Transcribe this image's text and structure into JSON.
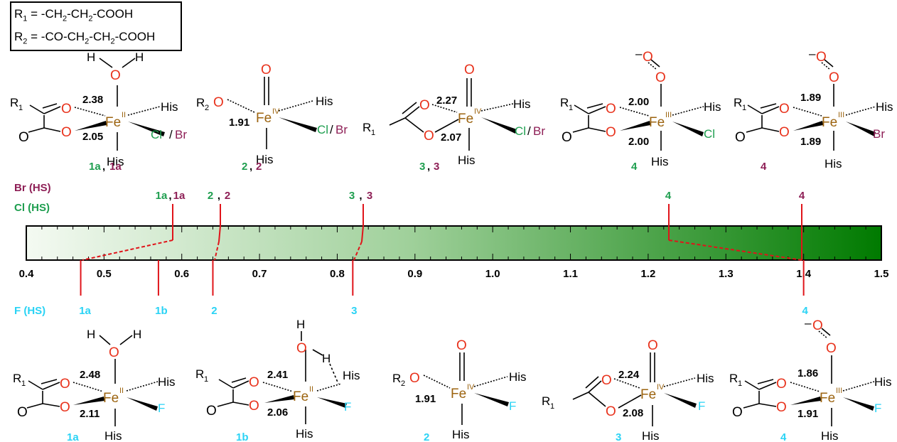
{
  "legend": {
    "r1": {
      "label": "R",
      "sub": "1",
      "def": " = -CH",
      "s1": "2",
      "mid": "-CH",
      "s2": "2",
      "end": "-COOH"
    },
    "r2": {
      "label": "R",
      "sub": "2",
      "def": " = -CO-CH",
      "s1": "2",
      "mid": "-CH",
      "s2": "2",
      "end": "-COOH"
    }
  },
  "colors": {
    "br": "#8e1f56",
    "cl": "#1e9e4f",
    "f": "#2ad3f5",
    "fe": "#9c6410",
    "o": "#e8321c",
    "marker": "#e0141a",
    "bar_start": "#f4faf2",
    "bar_end": "#007a00"
  },
  "series_labels": {
    "br": "Br (HS)",
    "cl": "Cl (HS)",
    "f": "F (HS)"
  },
  "chart_data": {
    "type": "diagram",
    "axis": {
      "min": 0.4,
      "max": 1.5,
      "ticks": [
        "0.4",
        "0.5",
        "0.6",
        "0.7",
        "0.8",
        "0.9",
        "1.0",
        "1.1",
        "1.2",
        "1.3",
        "1.4",
        "1.5"
      ]
    },
    "top_markers": [
      {
        "a": "1a",
        "b": "1a",
        "value": 0.59
      },
      {
        "a": "2",
        "b": "2",
        "value": 0.65
      },
      {
        "a": "3",
        "b": "3",
        "value": 0.83
      },
      {
        "a": "4",
        "b": "",
        "value": 1.23
      },
      {
        "a": "",
        "b": "4",
        "value": 1.4
      }
    ],
    "bottom_markers": [
      {
        "label": "1a",
        "value": 0.47
      },
      {
        "label": "1b",
        "value": 0.57
      },
      {
        "label": "2",
        "value": 0.64
      },
      {
        "label": "3",
        "value": 0.82
      },
      {
        "label": "4",
        "value": 1.4
      }
    ]
  },
  "top_structures": [
    {
      "id": "1a",
      "fe_ox": "II",
      "d1": "2.38",
      "d2": "2.05",
      "axial": "His",
      "eq": "His",
      "halide": "Cl",
      "halide2": "Br",
      "r": "R",
      "rsub": "1",
      "lbl_a": "1a",
      "lbl_b": "1a",
      "w": "H",
      "w2": "O"
    },
    {
      "id": "2",
      "fe_ox": "IV",
      "d1": "1.91",
      "axial": "His",
      "eq": "His",
      "halide": "Cl",
      "halide2": "Br",
      "r": "R",
      "rsub": "2",
      "lbl_a": "2",
      "lbl_b": "2",
      "oxo": "O",
      "o1": "O"
    },
    {
      "id": "3",
      "fe_ox": "IV",
      "d1": "2.27",
      "d2": "2.07",
      "axial": "His",
      "eq": "His",
      "halide": "Cl",
      "halide2": "Br",
      "r": "R",
      "rsub": "1",
      "lbl_a": "3",
      "lbl_b": "3",
      "oxo": "O"
    },
    {
      "id": "4cl",
      "fe_ox": "III",
      "d1": "2.00",
      "d2": "2.00",
      "axial": "His",
      "eq": "His",
      "halide": "Cl",
      "r": "R",
      "rsub": "1",
      "lbl": "4",
      "sup": "–",
      "o_a": "O",
      "o_b": "O"
    },
    {
      "id": "4br",
      "fe_ox": "III",
      "d1": "1.89",
      "d2": "1.89",
      "axial": "His",
      "eq": "His",
      "halide": "Br",
      "r": "R",
      "rsub": "1",
      "lbl": "4",
      "sup": "–",
      "o_a": "O",
      "o_b": "O"
    }
  ],
  "bottom_structures": [
    {
      "id": "1a",
      "fe_ox": "II",
      "d1": "2.48",
      "d2": "2.11",
      "axial": "His",
      "eq": "His",
      "halide": "F",
      "r": "R",
      "rsub": "1",
      "lbl": "1a"
    },
    {
      "id": "1b",
      "fe_ox": "II",
      "d1": "2.41",
      "d2": "2.06",
      "axial": "His",
      "eq": "His",
      "halide": "F",
      "r": "R",
      "rsub": "1",
      "lbl": "1b"
    },
    {
      "id": "2",
      "fe_ox": "IV",
      "d1": "1.91",
      "axial": "His",
      "eq": "His",
      "halide": "F",
      "r": "R",
      "rsub": "2",
      "lbl": "2"
    },
    {
      "id": "3",
      "fe_ox": "IV",
      "d1": "2.24",
      "d2": "2.08",
      "axial": "His",
      "eq": "His",
      "halide": "F",
      "r": "R",
      "rsub": "1",
      "lbl": "3"
    },
    {
      "id": "4",
      "fe_ox": "III",
      "d1": "1.86",
      "d2": "1.91",
      "axial": "His",
      "eq": "His",
      "halide": "F",
      "r": "R",
      "rsub": "1",
      "lbl": "4",
      "sup": "–"
    }
  ],
  "atoms": {
    "fe": "Fe",
    "o": "O",
    "h": "H"
  }
}
